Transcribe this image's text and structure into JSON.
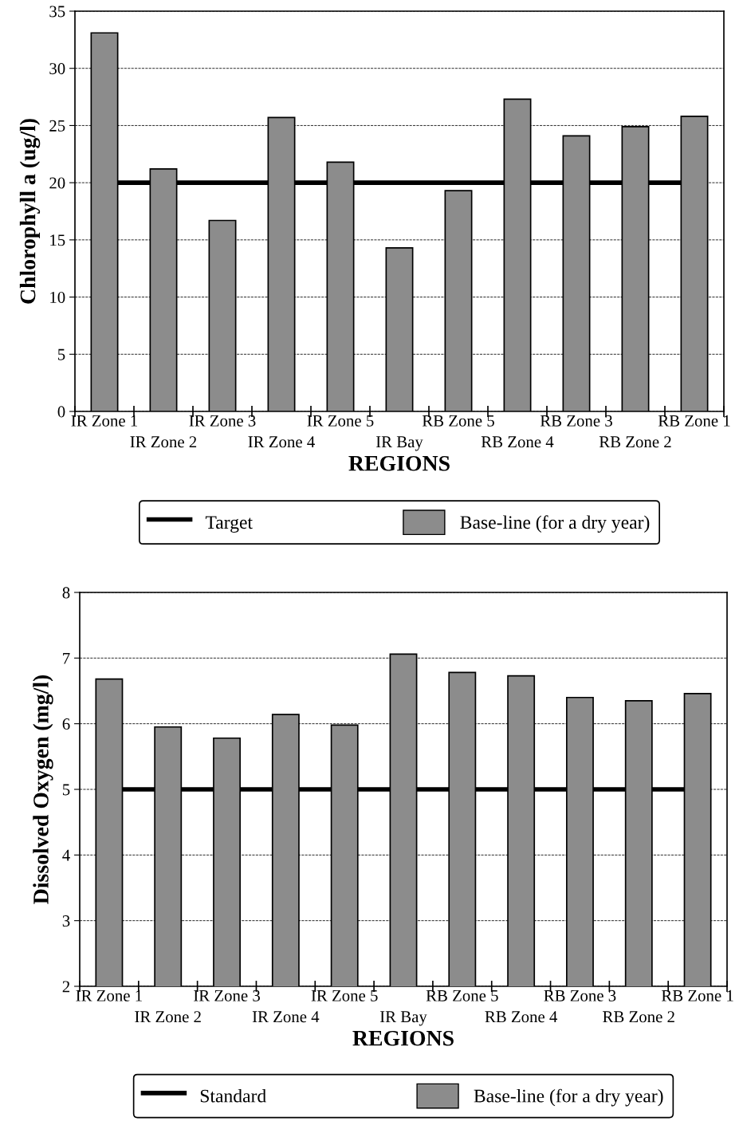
{
  "chart_data": [
    {
      "type": "bar",
      "xlabel": "REGIONS",
      "ylabel": "Chlorophyll a (ug/l)",
      "categories": [
        "IR Zone 1",
        "IR Zone 2",
        "IR Zone 3",
        "IR Zone 4",
        "IR Zone 5",
        "IR Bay",
        "RB Zone 5",
        "RB Zone 4",
        "RB Zone 3",
        "RB Zone 2",
        "RB Zone 1"
      ],
      "series": [
        {
          "name": "Base-line (for a dry year)",
          "color": "#8c8c8c",
          "values": [
            33.1,
            21.2,
            16.7,
            25.7,
            21.8,
            14.3,
            19.3,
            27.3,
            24.1,
            24.9,
            25.8
          ]
        }
      ],
      "ref_lines": [
        {
          "axis": "y",
          "value": 20,
          "label": "Target",
          "color": "#000000",
          "line_style": "solid"
        }
      ],
      "ylim": [
        0,
        35
      ],
      "yticks": [
        0,
        5,
        10,
        15,
        20,
        25,
        30,
        35
      ],
      "grid": "y",
      "legend": "bottom"
    },
    {
      "type": "bar",
      "xlabel": "REGIONS",
      "ylabel": "Dissolved Oxygen (mg/l)",
      "categories": [
        "IR Zone 1",
        "IR Zone 2",
        "IR Zone 3",
        "IR Zone 4",
        "IR Zone 5",
        "IR Bay",
        "RB Zone 5",
        "RB Zone 4",
        "RB Zone 3",
        "RB Zone 2",
        "RB Zone 1"
      ],
      "series": [
        {
          "name": "Base-line (for a dry year)",
          "color": "#8c8c8c",
          "values": [
            6.68,
            5.95,
            5.78,
            6.14,
            5.98,
            7.06,
            6.78,
            6.73,
            6.4,
            6.35,
            6.46
          ]
        }
      ],
      "ref_lines": [
        {
          "axis": "y",
          "value": 5,
          "label": "Standard",
          "color": "#000000",
          "line_style": "solid"
        }
      ],
      "ylim": [
        2,
        8
      ],
      "yticks": [
        2,
        3,
        4,
        5,
        6,
        7,
        8
      ],
      "grid": "y",
      "legend": "bottom"
    }
  ]
}
